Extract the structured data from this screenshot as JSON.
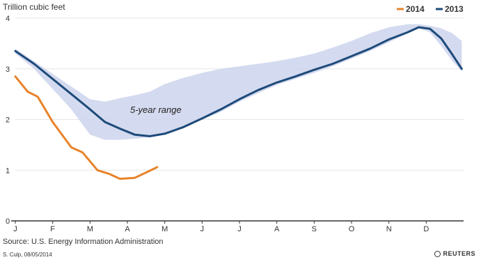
{
  "chart_data": {
    "type": "line",
    "unit_label": "Trillion cubic feet",
    "ylim": [
      0,
      4
    ],
    "y_ticks": [
      "0",
      "1",
      "2",
      "3",
      "4"
    ],
    "x_tick_labels": [
      "J",
      "F",
      "M",
      "A",
      "M",
      "J",
      "J",
      "A",
      "S",
      "O",
      "N",
      "D"
    ],
    "x_range_months": [
      0,
      12
    ],
    "grid": true,
    "legend_position": "top-right",
    "annotation": "5-year range",
    "colors": {
      "2014": "#e8832a",
      "2013": "#1d4a7a",
      "range": "#cdd3ec"
    },
    "series": [
      {
        "name": "2014",
        "x": [
          0.0,
          0.33,
          0.6,
          1.0,
          1.5,
          1.8,
          2.2,
          2.5,
          2.8,
          3.2,
          3.4,
          3.8
        ],
        "values": [
          2.85,
          2.55,
          2.45,
          1.95,
          1.45,
          1.35,
          1.0,
          0.93,
          0.83,
          0.85,
          0.92,
          1.06
        ]
      },
      {
        "name": "2013",
        "x": [
          0.0,
          0.5,
          1.0,
          1.5,
          2.0,
          2.4,
          2.8,
          3.2,
          3.6,
          4.0,
          4.5,
          5.0,
          5.5,
          6.0,
          6.5,
          7.0,
          7.5,
          8.0,
          8.5,
          9.0,
          9.5,
          10.0,
          10.5,
          10.8,
          11.1,
          11.4,
          11.7,
          11.95
        ],
        "values": [
          3.35,
          3.1,
          2.8,
          2.5,
          2.2,
          1.95,
          1.82,
          1.7,
          1.67,
          1.72,
          1.85,
          2.02,
          2.2,
          2.4,
          2.58,
          2.73,
          2.85,
          2.98,
          3.1,
          3.25,
          3.4,
          3.58,
          3.72,
          3.82,
          3.79,
          3.6,
          3.28,
          3.0
        ]
      }
    ],
    "range_band": {
      "x": [
        0.0,
        0.5,
        1.0,
        1.5,
        2.0,
        2.4,
        2.8,
        3.2,
        3.6,
        4.0,
        4.5,
        5.0,
        5.5,
        6.0,
        6.5,
        7.0,
        7.5,
        8.0,
        8.5,
        9.0,
        9.5,
        10.0,
        10.5,
        10.8,
        11.1,
        11.4,
        11.7,
        11.95
      ],
      "upper": [
        3.4,
        3.15,
        2.9,
        2.65,
        2.4,
        2.35,
        2.42,
        2.48,
        2.55,
        2.7,
        2.82,
        2.92,
        3.0,
        3.05,
        3.1,
        3.15,
        3.22,
        3.3,
        3.42,
        3.55,
        3.7,
        3.82,
        3.88,
        3.88,
        3.85,
        3.8,
        3.7,
        3.55
      ],
      "lower": [
        3.3,
        3.0,
        2.6,
        2.2,
        1.7,
        1.6,
        1.6,
        1.62,
        1.65,
        1.72,
        1.85,
        2.0,
        2.15,
        2.35,
        2.52,
        2.68,
        2.8,
        2.92,
        3.05,
        3.2,
        3.35,
        3.52,
        3.7,
        3.8,
        3.72,
        3.45,
        3.15,
        2.95
      ]
    }
  },
  "footer": {
    "source": "Source: U.S. Energy Information Administration",
    "credit": "S. Culp, 08/05/2014",
    "brand": "REUTERS"
  },
  "icons": {
    "brand_logo": "reuters-logo-icon"
  }
}
